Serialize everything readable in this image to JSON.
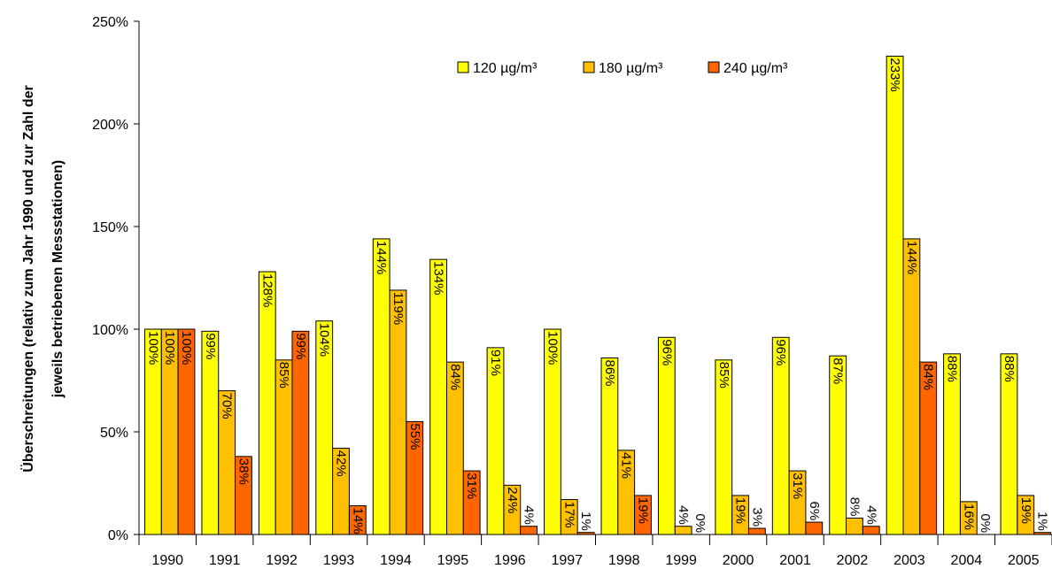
{
  "chart_data": {
    "type": "bar",
    "ylabel_line1": "Überschreitungen (relativ zum Jahr 1990 und zur Zahl der",
    "ylabel_line2": "jeweils betriebenen Messstationen)",
    "ylim": [
      0,
      250
    ],
    "yticks": [
      0,
      50,
      100,
      150,
      200,
      250
    ],
    "ytick_labels": [
      "0%",
      "50%",
      "100%",
      "150%",
      "200%",
      "250%"
    ],
    "categories": [
      "1990",
      "1991",
      "1992",
      "1993",
      "1994",
      "1995",
      "1996",
      "1997",
      "1998",
      "1999",
      "2000",
      "2001",
      "2002",
      "2003",
      "2004",
      "2005"
    ],
    "legend_position": "top-center",
    "grid": false,
    "series": [
      {
        "name": "120 µg/m³",
        "color": "#FFFF00",
        "values": [
          100,
          99,
          128,
          104,
          144,
          134,
          91,
          100,
          86,
          96,
          85,
          96,
          87,
          233,
          88,
          88
        ],
        "labels": [
          "100%",
          "99%",
          "128%",
          "104%",
          "144%",
          "134%",
          "91%",
          "100%",
          "86%",
          "96%",
          "85%",
          "96%",
          "87%",
          "233%",
          "88%",
          "88%"
        ]
      },
      {
        "name": "180 µg/m³",
        "color": "#FFC000",
        "values": [
          100,
          70,
          85,
          42,
          119,
          84,
          24,
          17,
          41,
          4,
          19,
          31,
          8,
          144,
          16,
          19
        ],
        "labels": [
          "100%",
          "70%",
          "85%",
          "42%",
          "119%",
          "84%",
          "24%",
          "17%",
          "41%",
          "4%",
          "19%",
          "31%",
          "8%",
          "144%",
          "16%",
          "19%"
        ]
      },
      {
        "name": "240 µg/m³",
        "color": "#FF6600",
        "values": [
          100,
          38,
          99,
          14,
          55,
          31,
          4,
          1,
          19,
          0,
          3,
          6,
          4,
          84,
          0,
          1
        ],
        "labels": [
          "100%",
          "38%",
          "99%",
          "14%",
          "55%",
          "31%",
          "4%",
          "1%",
          "19%",
          "0%",
          "3%",
          "6%",
          "4%",
          "84%",
          "0%",
          "1%"
        ]
      }
    ]
  }
}
